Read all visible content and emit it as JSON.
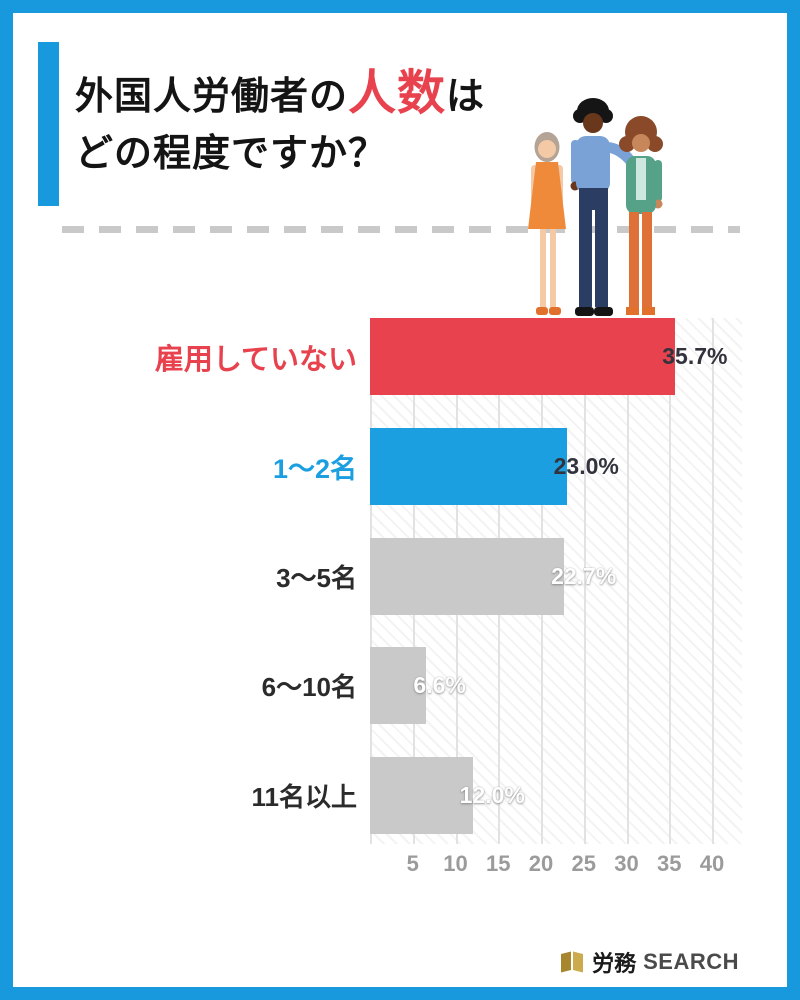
{
  "frame": {
    "border_color": "#1899dd"
  },
  "title": {
    "line1_pre": "外国人労働者の",
    "line1_highlight": "人数",
    "line1_post": "は",
    "line2": "どの程度ですか？",
    "highlight_color": "#e8424e"
  },
  "chart_data": {
    "type": "bar",
    "orientation": "horizontal",
    "title": "外国人労働者の人数はどの程度ですか？",
    "categories": [
      "雇用していない",
      "1〜2名",
      "3〜5名",
      "6〜10名",
      "11名以上"
    ],
    "values": [
      35.7,
      23.0,
      22.7,
      6.6,
      12.0
    ],
    "value_labels": [
      "35.7%",
      "23.0%",
      "22.7%",
      "6.6%",
      "12.0%"
    ],
    "bar_colors": [
      "#e8424e",
      "#1b9fe0",
      "#c9c9c9",
      "#c9c9c9",
      "#c9c9c9"
    ],
    "category_label_colors": [
      "#e8424e",
      "#1b9fe0",
      "#2b2b2b",
      "#2b2b2b",
      "#2b2b2b"
    ],
    "category_label_sizes": [
      29,
      27,
      26,
      26,
      26
    ],
    "value_label_style": [
      "dark",
      "dark",
      "light",
      "light",
      "light"
    ],
    "xlim": [
      0,
      40
    ],
    "x_ticks": [
      5,
      10,
      15,
      20,
      25,
      30,
      35,
      40
    ],
    "grid": true,
    "legend": "none"
  },
  "illustration": {
    "name": "three-workers-illustration"
  },
  "logo": {
    "bold": "労務",
    "rest": "SEARCH"
  }
}
